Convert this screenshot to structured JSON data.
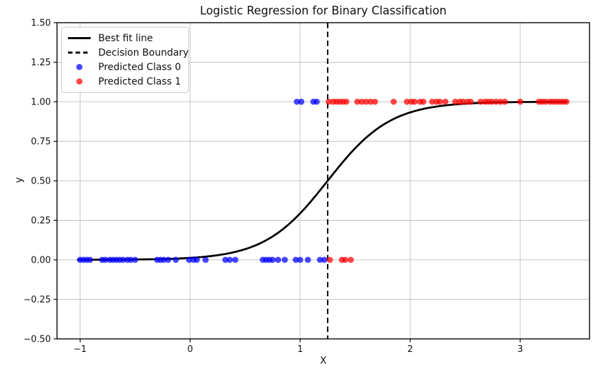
{
  "chart_data": {
    "type": "scatter",
    "title": "Logistic Regression for Binary Classification",
    "xlabel": "X",
    "ylabel": "y",
    "xlim": [
      -1.21,
      3.63
    ],
    "ylim": [
      -0.5,
      1.5
    ],
    "xticks": [
      -1,
      0,
      1,
      2,
      3
    ],
    "xtick_labels": [
      "−1",
      "0",
      "1",
      "2",
      "3"
    ],
    "yticks": [
      -0.5,
      -0.25,
      0,
      0.25,
      0.5,
      0.75,
      1,
      1.25,
      1.5
    ],
    "ytick_labels": [
      "−0.50",
      "−0.25",
      "0.00",
      "0.25",
      "0.50",
      "0.75",
      "1.00",
      "1.25",
      "1.50"
    ],
    "grid": true,
    "colors": {
      "grid": "#c3c3c3",
      "axis": "#000000",
      "text": "#0f0f0f",
      "background": "#ffffff"
    },
    "best_fit_line": {
      "label": "Best fit line",
      "shape": "sigmoid",
      "x0": 1.25,
      "k": 3.5,
      "x_start": -1.02,
      "x_end": 3.42,
      "color": "#000000",
      "line_width": 2.8
    },
    "decision_boundary": {
      "label": "Decision Boundary",
      "x": 1.25,
      "color": "#000000",
      "style": "dashed",
      "line_width": 2
    },
    "series": [
      {
        "name": "Predicted Class 0",
        "color": "#0000ff",
        "alpha": 0.72,
        "points": [
          [
            -1.0,
            0
          ],
          [
            -0.97,
            0
          ],
          [
            -0.94,
            0
          ],
          [
            -0.91,
            0
          ],
          [
            -0.8,
            0
          ],
          [
            -0.77,
            0
          ],
          [
            -0.73,
            0
          ],
          [
            -0.7,
            0
          ],
          [
            -0.67,
            0
          ],
          [
            -0.64,
            0
          ],
          [
            -0.61,
            0
          ],
          [
            -0.57,
            0
          ],
          [
            -0.54,
            0
          ],
          [
            -0.5,
            0
          ],
          [
            -0.3,
            0
          ],
          [
            -0.27,
            0
          ],
          [
            -0.24,
            0
          ],
          [
            -0.2,
            0
          ],
          [
            -0.13,
            0
          ],
          [
            -0.01,
            0
          ],
          [
            0.03,
            0
          ],
          [
            0.06,
            0
          ],
          [
            0.14,
            0
          ],
          [
            0.32,
            0
          ],
          [
            0.36,
            0
          ],
          [
            0.41,
            0
          ],
          [
            0.66,
            0
          ],
          [
            0.69,
            0
          ],
          [
            0.72,
            0
          ],
          [
            0.75,
            0
          ],
          [
            0.8,
            0
          ],
          [
            0.86,
            0
          ],
          [
            0.96,
            0
          ],
          [
            1.0,
            0
          ],
          [
            1.07,
            0
          ],
          [
            1.18,
            0
          ],
          [
            1.22,
            0
          ],
          [
            0.97,
            1
          ],
          [
            1.01,
            1
          ],
          [
            1.12,
            1
          ],
          [
            1.15,
            1
          ]
        ]
      },
      {
        "name": "Predicted Class 1",
        "color": "#ff0000",
        "alpha": 0.72,
        "points": [
          [
            1.27,
            0
          ],
          [
            1.38,
            0
          ],
          [
            1.41,
            0
          ],
          [
            1.46,
            0
          ],
          [
            1.26,
            1
          ],
          [
            1.3,
            1
          ],
          [
            1.33,
            1
          ],
          [
            1.36,
            1
          ],
          [
            1.39,
            1
          ],
          [
            1.42,
            1
          ],
          [
            1.52,
            1
          ],
          [
            1.56,
            1
          ],
          [
            1.6,
            1
          ],
          [
            1.64,
            1
          ],
          [
            1.68,
            1
          ],
          [
            1.85,
            1
          ],
          [
            1.97,
            1
          ],
          [
            2.01,
            1
          ],
          [
            2.04,
            1
          ],
          [
            2.09,
            1
          ],
          [
            2.12,
            1
          ],
          [
            2.2,
            1
          ],
          [
            2.24,
            1
          ],
          [
            2.27,
            1
          ],
          [
            2.32,
            1
          ],
          [
            2.41,
            1
          ],
          [
            2.45,
            1
          ],
          [
            2.48,
            1
          ],
          [
            2.52,
            1
          ],
          [
            2.55,
            1
          ],
          [
            2.64,
            1
          ],
          [
            2.68,
            1
          ],
          [
            2.71,
            1
          ],
          [
            2.74,
            1
          ],
          [
            2.78,
            1
          ],
          [
            2.82,
            1
          ],
          [
            2.86,
            1
          ],
          [
            3.0,
            1
          ],
          [
            3.17,
            1
          ],
          [
            3.2,
            1
          ],
          [
            3.23,
            1
          ],
          [
            3.27,
            1
          ],
          [
            3.3,
            1
          ],
          [
            3.33,
            1
          ],
          [
            3.36,
            1
          ],
          [
            3.39,
            1
          ],
          [
            3.42,
            1
          ]
        ]
      }
    ],
    "legend": {
      "position": "upper-left",
      "entries": [
        {
          "label": "Best fit line",
          "marker": "solid-line",
          "color": "#000000"
        },
        {
          "label": "Decision Boundary",
          "marker": "dashed-line",
          "color": "#000000"
        },
        {
          "label": "Predicted Class 0",
          "marker": "dot",
          "color": "#0000ff",
          "alpha": 0.72
        },
        {
          "label": "Predicted Class 1",
          "marker": "dot",
          "color": "#ff0000",
          "alpha": 0.72
        }
      ]
    }
  }
}
